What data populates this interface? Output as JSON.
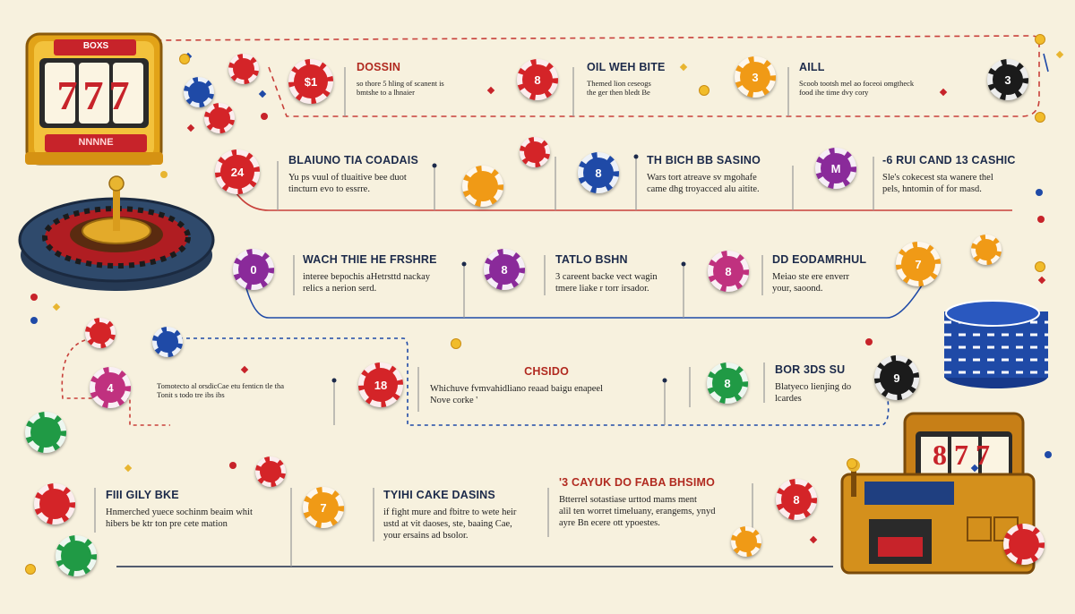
{
  "colors": {
    "background": "#f7f1de",
    "accent_red": "#b12a20",
    "navy": "#1c2a4a",
    "gold": "#f1bc2a"
  },
  "slot_machine_top": {
    "sign": "BOXS",
    "reels": "777",
    "panel": "NNNNE"
  },
  "slot_machine_bottom": {
    "reels": "877"
  },
  "steps": [
    {
      "title": "DOSSIN",
      "desc": "so thore 5 hling of scanent is\nbmtshe to a lhnaier",
      "chip": "$1"
    },
    {
      "title": "OIL WEH BITE",
      "desc": "Themed lion ceseogs\nthe ger then bledt Be",
      "chip": "8"
    },
    {
      "title": "AILL",
      "desc": "Scoob tootsh mel ao foceoi omgtheck\nfood ihe time dvy cory",
      "chip": "3"
    },
    {
      "title": "BLAIUNO TIA COADAIS",
      "desc": "Yu ps vuul of tluaitive bee duot\ntincturn evo to essrre.",
      "chip": "24"
    },
    {
      "title": "TH BICH BB SASINO",
      "desc": "Wars tort atreave sv mgohafe\ncame dhg troyacced alu aitite.",
      "chip": "8"
    },
    {
      "title": "-6 RUI CAND 13 CASHIC",
      "desc": "Sle's cokecest sta wanere thel\npels, hntomin of for masd.",
      "chip": "M"
    },
    {
      "title": "WACH THIE HE FRSHRE",
      "desc": "interee bepochis aHetrsttd nackay\nrelics a nerion serd.",
      "chip": "0"
    },
    {
      "title": "TATLO BSHN",
      "desc": "3 careent backe vect wagin\ntmere liake r torr irsador.",
      "chip": "8"
    },
    {
      "title": "DD EODAMRHUL",
      "desc": "Meiao ste ere enverr\nyour, saoond.",
      "chip": "7"
    },
    {
      "title": "",
      "desc": "Tomotecto al orsdicCae etu fenticn tle tha\nTonit s todo tre ibs ibs",
      "chip": "4"
    },
    {
      "title": "CHSIDO",
      "desc": "Whichuve fvmvahidliano reaad baigu enapeel\nNove corke '",
      "chip": "18"
    },
    {
      "title": "BOR 3DS SU",
      "desc": "Blatyeco lienjing do\nlcardes",
      "chip": "8"
    },
    {
      "title": "FIII GILY BKE",
      "desc": "Hnmerched yuece sochinm beaim whit\nhibers be ktr ton pre cete mation",
      "chip": ""
    },
    {
      "title": "TYIHI CAKE DASINS",
      "desc": "if fight mure and fbitre to wete heir\nustd at vit daoses, ste, baaing Cae,\nyour ersains ad bsolor.",
      "chip": "7"
    },
    {
      "title": "'3 CAYUK DO FABA BHSIMO",
      "desc": "Btterrel sotastiase urttod mams ment\nalil ten worret timeluany, erangems, ynyd\nayre Bn ecere ott ypoestes.",
      "chip": "8"
    }
  ],
  "decor_chips": [
    "9",
    "8",
    "7",
    "9"
  ]
}
